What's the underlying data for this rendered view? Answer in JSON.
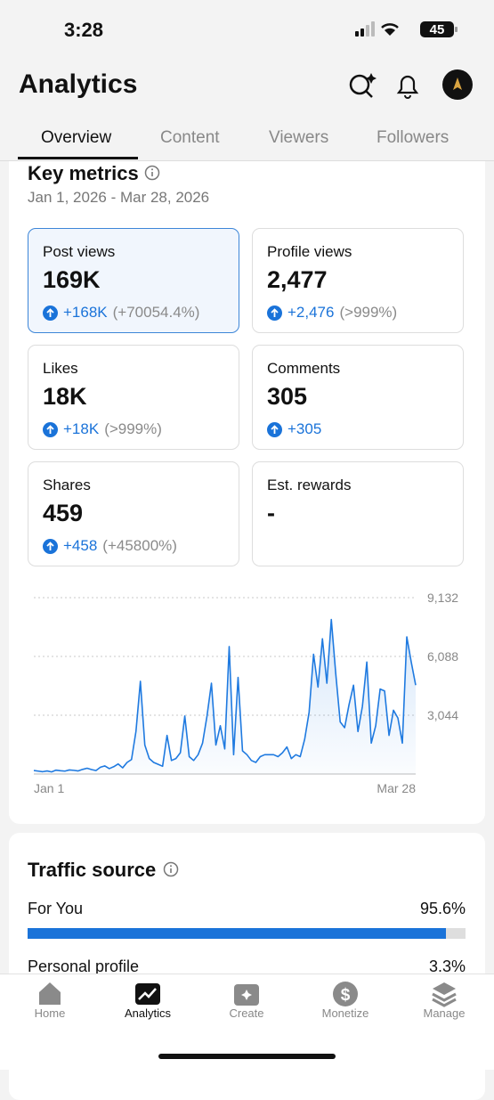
{
  "status_bar": {
    "time": "3:28",
    "battery": "45"
  },
  "header": {
    "title": "Analytics"
  },
  "tabs": [
    "Overview",
    "Content",
    "Viewers",
    "Followers"
  ],
  "key_metrics": {
    "title": "Key metrics",
    "date_range": "Jan 1, 2026 - Mar 28, 2026",
    "cards": [
      {
        "label": "Post views",
        "value": "169K",
        "change": "+168K",
        "change_pct": "(+70054.4%)"
      },
      {
        "label": "Profile views",
        "value": "2,477",
        "change": "+2,476",
        "change_pct": "(>999%)"
      },
      {
        "label": "Likes",
        "value": "18K",
        "change": "+18K",
        "change_pct": "(>999%)"
      },
      {
        "label": "Comments",
        "value": "305",
        "change": "+305"
      },
      {
        "label": "Shares",
        "value": "459",
        "change": "+458",
        "change_pct": "(+45800%)"
      },
      {
        "label": "Est. rewards",
        "value": "-"
      }
    ]
  },
  "chart_data": {
    "type": "line",
    "color": "#1f7ae0",
    "grid": true,
    "categories": [
      "Jan 1",
      null,
      null,
      null,
      null,
      null,
      null,
      null,
      null,
      null,
      null,
      null,
      null,
      null,
      null,
      null,
      null,
      null,
      null,
      null,
      null,
      null,
      null,
      null,
      null,
      null,
      null,
      null,
      null,
      null,
      null,
      null,
      null,
      null,
      null,
      null,
      null,
      null,
      null,
      null,
      null,
      null,
      null,
      null,
      null,
      null,
      null,
      null,
      null,
      null,
      null,
      null,
      null,
      null,
      null,
      null,
      null,
      null,
      null,
      null,
      null,
      null,
      null,
      null,
      null,
      null,
      null,
      null,
      null,
      null,
      null,
      null,
      null,
      null,
      null,
      null,
      null,
      null,
      null,
      null,
      null,
      null,
      null,
      null,
      null,
      null,
      "Mar 28"
    ],
    "values": [
      180,
      150,
      120,
      160,
      110,
      200,
      170,
      150,
      210,
      190,
      160,
      240,
      300,
      230,
      180,
      350,
      420,
      280,
      380,
      520,
      320,
      600,
      750,
      2200,
      4800,
      1500,
      800,
      600,
      500,
      400,
      2000,
      700,
      800,
      1100,
      3000,
      900,
      700,
      1000,
      1600,
      3000,
      4700,
      1500,
      2500,
      1300,
      6600,
      1000,
      5000,
      1200,
      1000,
      700,
      600,
      900,
      1000,
      1000,
      1000,
      900,
      1100,
      1400,
      800,
      1000,
      900,
      1800,
      3200,
      6200,
      4500,
      7000,
      4700,
      8000,
      5200,
      2700,
      2400,
      3600,
      4600,
      2200,
      3500,
      5800,
      1600,
      2500,
      4400,
      4300,
      2000,
      3300,
      2900,
      1600,
      7100,
      5800,
      4600
    ],
    "ylim": [
      0,
      9132
    ],
    "yticks": [
      {
        "value": 3044,
        "label": "3,044"
      },
      {
        "value": 6088,
        "label": "6,088"
      },
      {
        "value": 9132,
        "label": "9,132"
      }
    ]
  },
  "traffic_source": {
    "title": "Traffic source",
    "categories": [
      "For You",
      "Personal profile"
    ],
    "values": [
      95.6,
      3.3
    ],
    "value_labels": [
      "95.6%",
      "3.3%"
    ],
    "xlim": [
      0,
      100
    ],
    "color": "#1a73d9"
  },
  "nav": [
    "Home",
    "Analytics",
    "Create",
    "Monetize",
    "Manage"
  ]
}
